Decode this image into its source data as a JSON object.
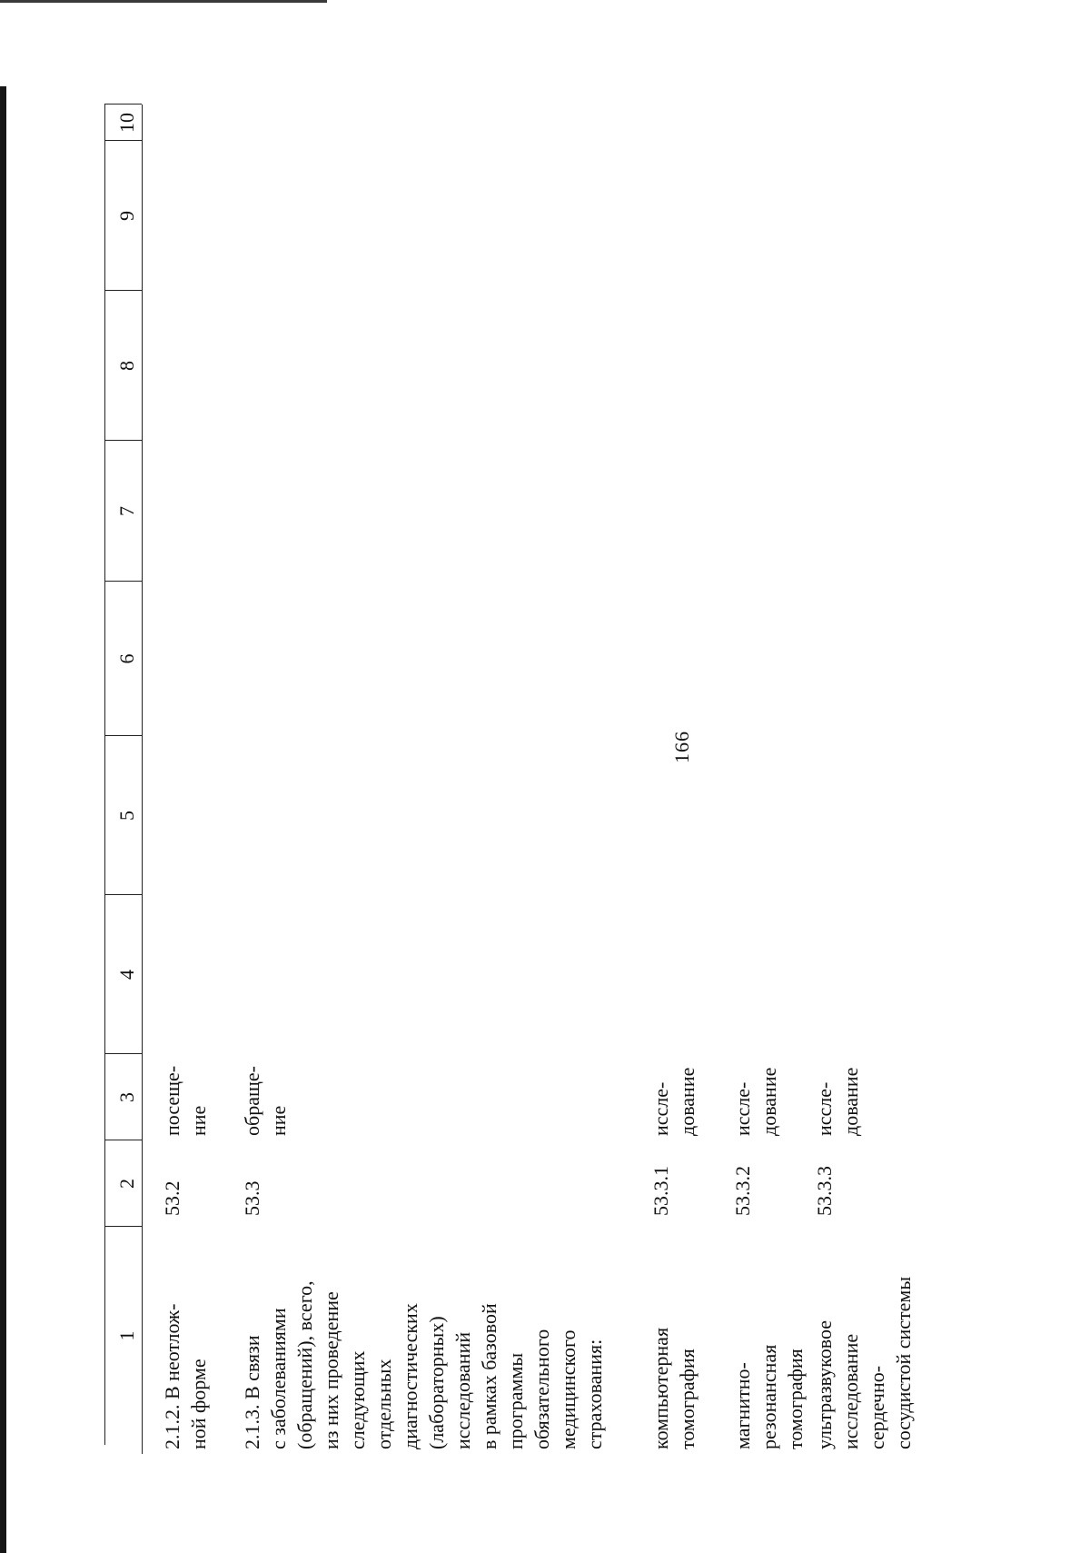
{
  "page_number": "166",
  "header_columns": [
    "1",
    "2",
    "3",
    "4",
    "5",
    "6",
    "7",
    "8",
    "9",
    "10"
  ],
  "rows": [
    {
      "name": "2.1.2. В неотлож-\nной форме",
      "code": "53.2",
      "unit": "посеще-\nние"
    },
    {
      "name": "2.1.3. В связи\nс заболеваниями\n(обращений), всего,\nиз них проведение\nследующих\nотдельных\nдиагностических\n(лабораторных)\nисследований\nв рамках базовой\nпрограммы\nобязательного\nмедицинского\nстрахования:",
      "code": "53.3",
      "unit": "обраще-\nние"
    },
    {
      "name": "компьютерная\nтомография",
      "code": "53.3.1",
      "unit": "иссле-\nдование"
    },
    {
      "name": "магнитно-\nрезонансная\nтомография",
      "code": "53.3.2",
      "unit": "иссле-\nдование"
    },
    {
      "name": "ультразвуковое\nисследование\nсердечно-\nсосудистой системы",
      "code": "53.3.3",
      "unit": "иссле-\nдование"
    }
  ]
}
